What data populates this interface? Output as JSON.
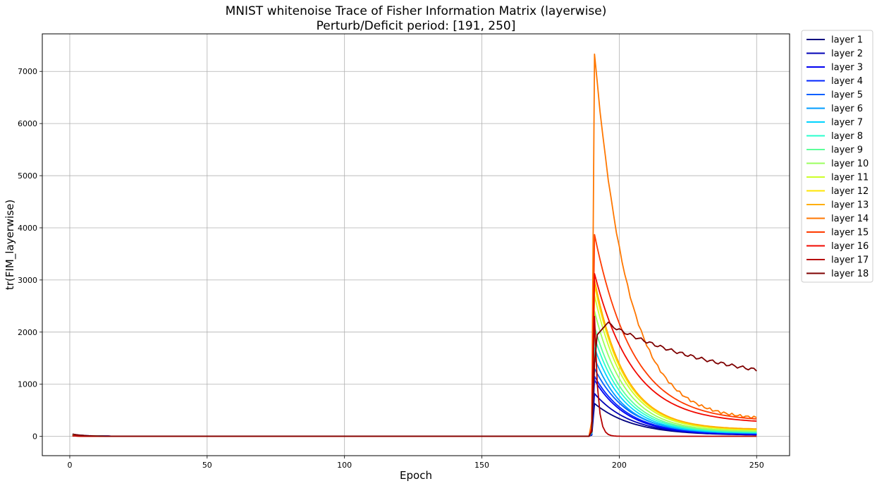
{
  "chart_data": {
    "type": "line",
    "title_line1": "MNIST whitenoise Trace of Fisher Information Matrix (layerwise)",
    "title_line2": "Perturb/Deficit period: [191, 250]",
    "xlabel": "Epoch",
    "ylabel": "tr(FIM_layerwise)",
    "xlim": [
      -10,
      262
    ],
    "ylim": [
      -370,
      7720
    ],
    "xticks": [
      0,
      50,
      100,
      150,
      200,
      250
    ],
    "yticks": [
      0,
      1000,
      2000,
      3000,
      4000,
      5000,
      6000,
      7000
    ],
    "grid": true,
    "legend_position": "outside-right",
    "series": [
      {
        "name": "layer 1",
        "color": "#00007f",
        "peak": 630,
        "end": 20,
        "tail": 14,
        "early": 40
      },
      {
        "name": "layer 2",
        "color": "#0000b6",
        "peak": 820,
        "end": 25,
        "tail": 13,
        "early": 35
      },
      {
        "name": "layer 3",
        "color": "#0000f1",
        "peak": 1080,
        "end": 30,
        "tail": 12,
        "early": 30
      },
      {
        "name": "layer 4",
        "color": "#0024ff",
        "peak": 1150,
        "end": 40,
        "tail": 12,
        "early": 28
      },
      {
        "name": "layer 5",
        "color": "#0060ff",
        "peak": 1300,
        "end": 50,
        "tail": 12,
        "early": 25
      },
      {
        "name": "layer 6",
        "color": "#009cff",
        "peak": 1500,
        "end": 55,
        "tail": 11,
        "early": 22
      },
      {
        "name": "layer 7",
        "color": "#00d4ff",
        "peak": 1700,
        "end": 60,
        "tail": 11,
        "early": 20
      },
      {
        "name": "layer 8",
        "color": "#29ffcd",
        "peak": 1900,
        "end": 70,
        "tail": 11,
        "early": 18
      },
      {
        "name": "layer 9",
        "color": "#5dff9a",
        "peak": 2100,
        "end": 80,
        "tail": 11,
        "early": 15
      },
      {
        "name": "layer 10",
        "color": "#9aff5d",
        "peak": 2400,
        "end": 90,
        "tail": 11,
        "early": 12
      },
      {
        "name": "layer 11",
        "color": "#cdff29",
        "peak": 2700,
        "end": 110,
        "tail": 11,
        "early": 10
      },
      {
        "name": "layer 12",
        "color": "#ffe500",
        "peak": 2900,
        "end": 120,
        "tail": 11,
        "early": 8
      },
      {
        "name": "layer 13",
        "color": "#ffae00",
        "peak": 3000,
        "end": 130,
        "tail": 11,
        "early": 6
      },
      {
        "name": "layer 14",
        "color": "#ff7700",
        "peak": 7330,
        "end": 310,
        "tail": 12,
        "early": 5
      },
      {
        "name": "layer 15",
        "color": "#ff3b00",
        "peak": 3870,
        "end": 280,
        "tail": 14,
        "early": 5
      },
      {
        "name": "layer 16",
        "color": "#f10800",
        "peak": 3120,
        "end": 250,
        "tail": 14,
        "early": 5
      },
      {
        "name": "layer 17",
        "color": "#b60000",
        "peak": 2300,
        "end": 2,
        "tail": 1.2,
        "early": 5
      },
      {
        "name": "layer 18",
        "color": "#7f0000",
        "peak": 2180,
        "end": 900,
        "tail": 0,
        "early": 40
      }
    ]
  }
}
